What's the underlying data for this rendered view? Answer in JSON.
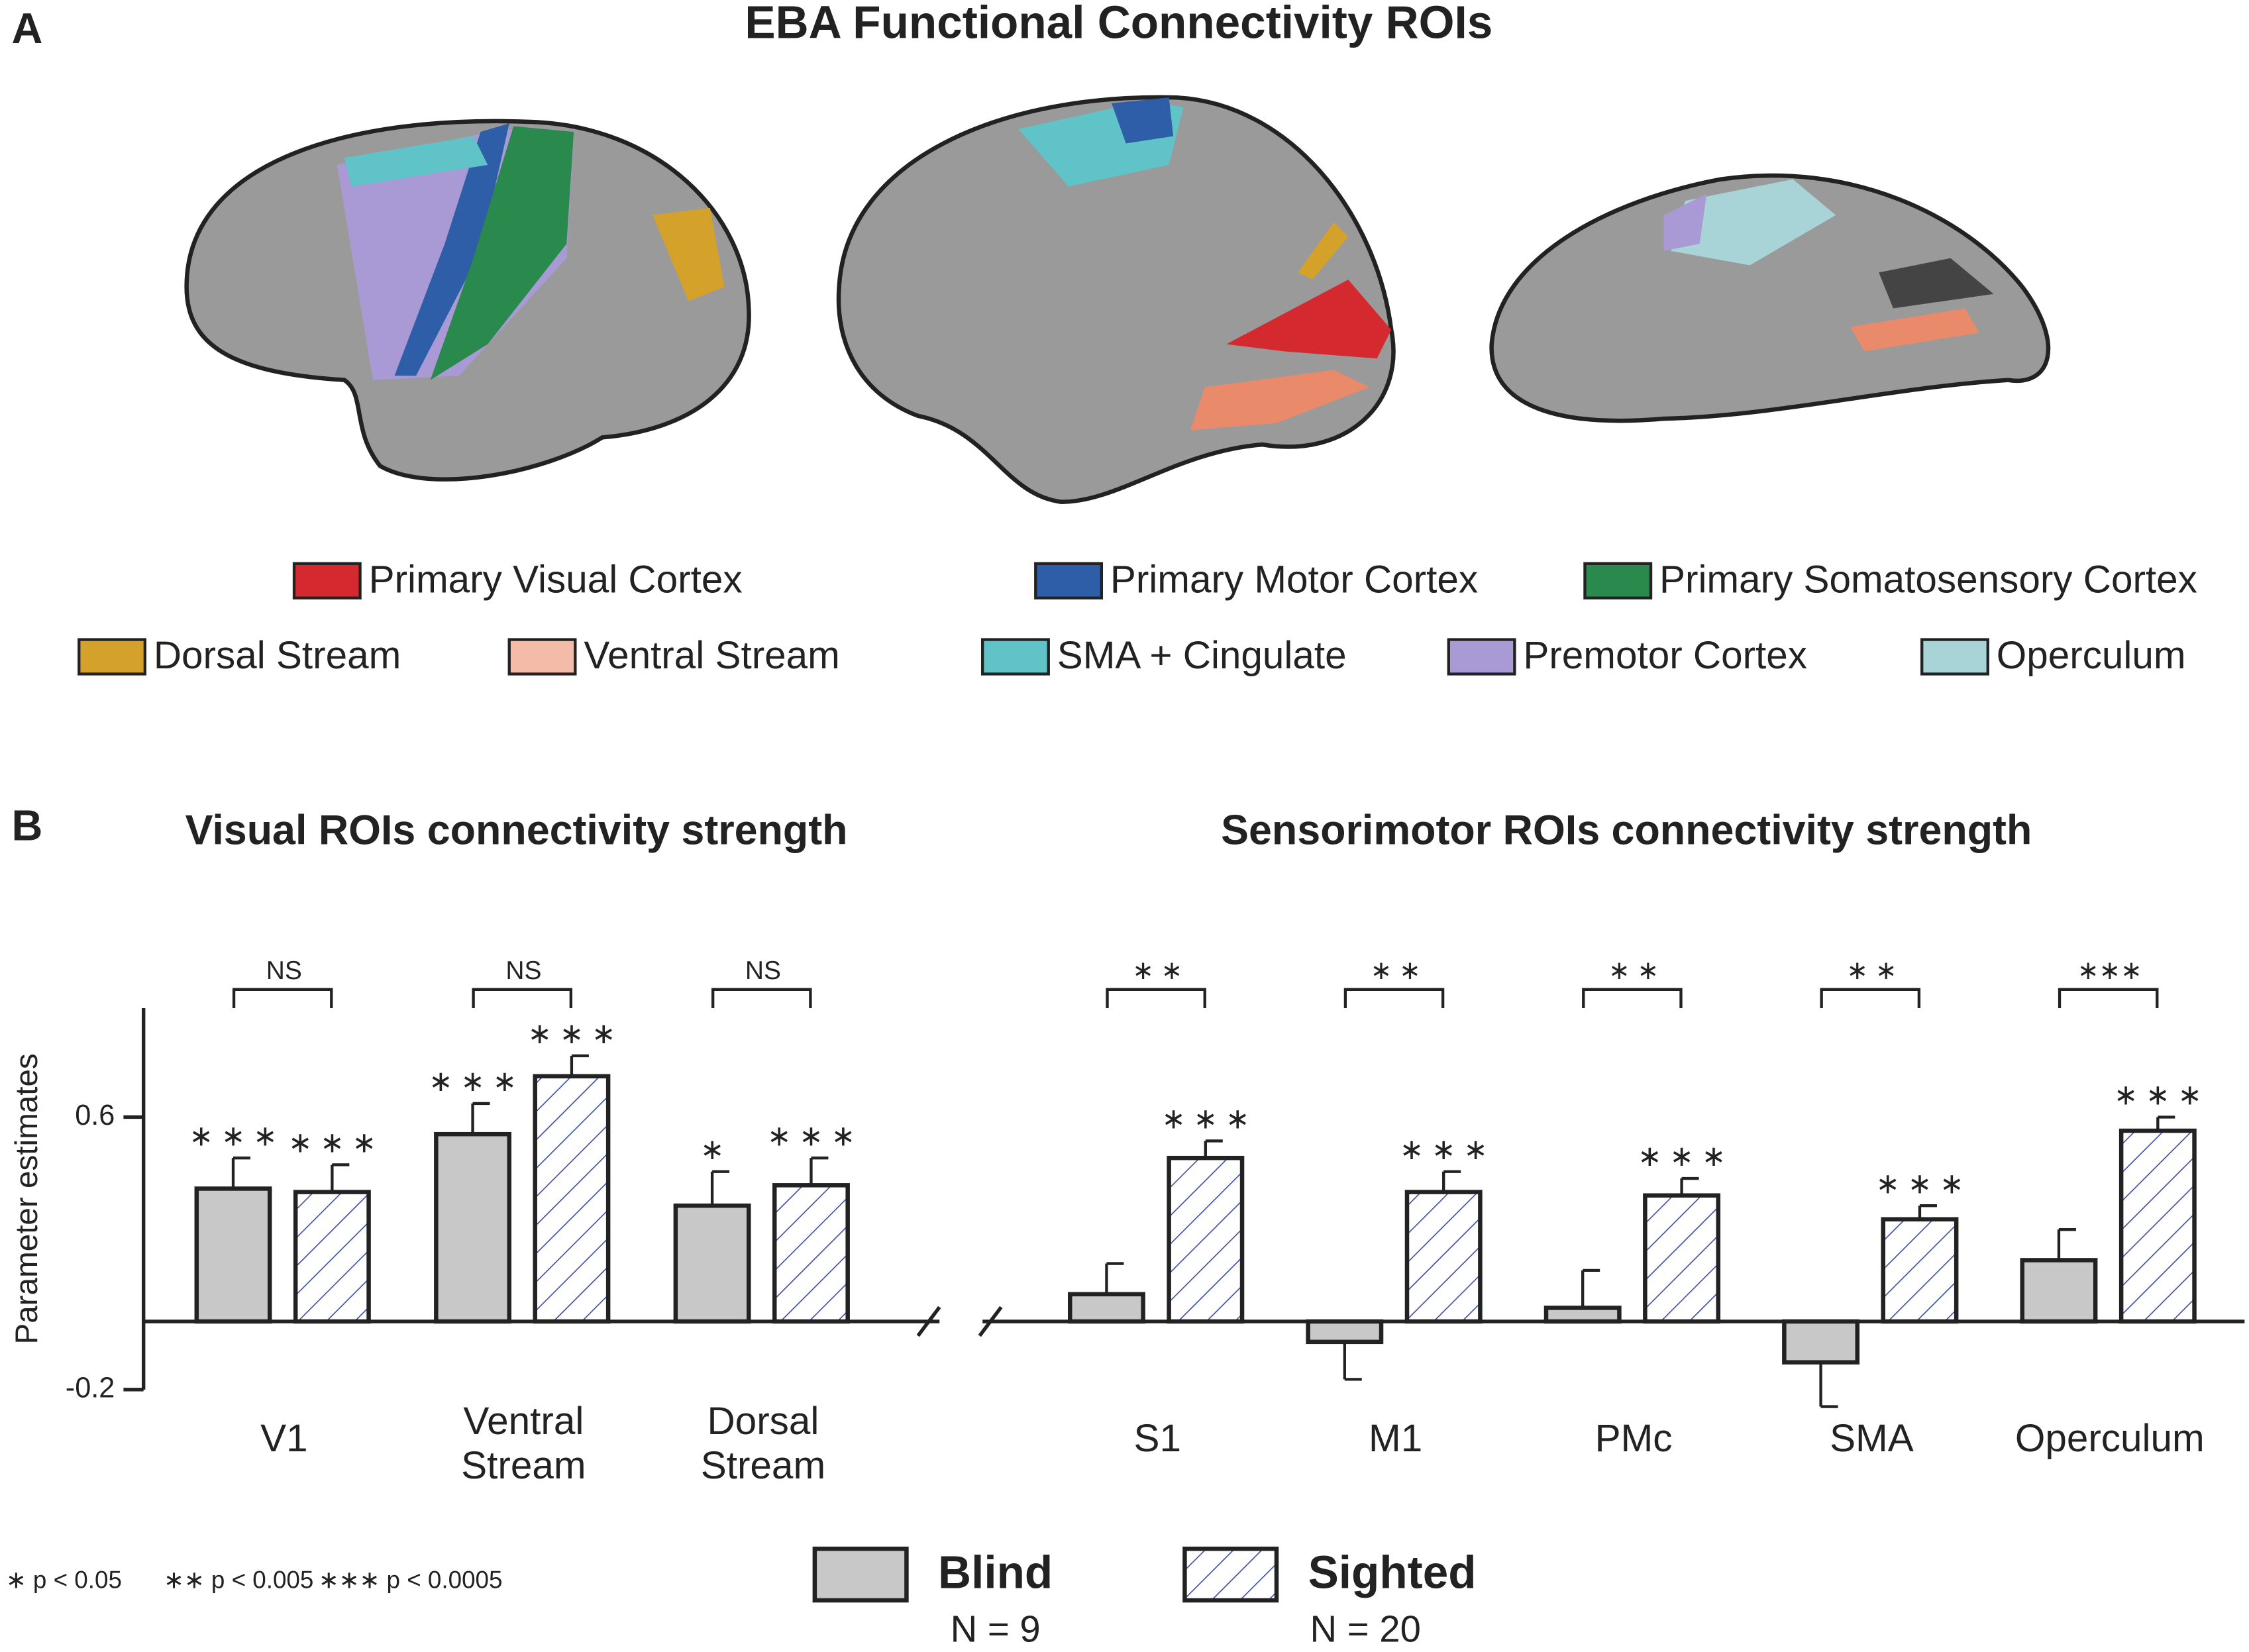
{
  "panel_labels": [
    "A",
    "B"
  ],
  "panel_a": {
    "title": "EBA Functional Connectivity ROIs",
    "legend": [
      {
        "name": "Primary Visual Cortex",
        "color": "#d42a2f"
      },
      {
        "name": "Primary Motor Cortex",
        "color": "#2e5ea8"
      },
      {
        "name": "Primary Somatosensory Cortex",
        "color": "#2a8a4e"
      },
      {
        "name": "Dorsal Stream",
        "color": "#d4a22a"
      },
      {
        "name": "Ventral Stream",
        "color": "#f4bba8"
      },
      {
        "name": "SMA + Cingulate",
        "color": "#5fc3c8"
      },
      {
        "name": "Premotor Cortex",
        "color": "#a99ad6"
      },
      {
        "name": "Operculum",
        "color": "#a8d4d8"
      }
    ]
  },
  "chart_data": {
    "type": "bar",
    "titles": [
      "Visual ROIs connectivity strength",
      "Sensorimotor ROIs connectivity strength"
    ],
    "y_label": "Parameter  estimates",
    "categories": [
      "V1",
      "Ventral Stream",
      "Dorsal Stream",
      "S1",
      "M1",
      "PMc",
      "SMA",
      "Operculum"
    ],
    "ylim": [
      -0.2,
      0.92
    ],
    "yticks": [
      -0.2,
      0.6
    ],
    "series": [
      {
        "name": "Blind",
        "n_label": "N = 9",
        "color": "#c8c8c8",
        "values": [
          0.39,
          0.55,
          0.34,
          0.08,
          -0.06,
          0.04,
          -0.12,
          0.18
        ],
        "errors": [
          0.09,
          0.09,
          0.1,
          0.09,
          0.11,
          0.11,
          0.13,
          0.09
        ],
        "sig_labels": [
          "∗ ∗ ∗",
          "∗ ∗ ∗",
          "∗",
          null,
          null,
          null,
          null,
          null
        ]
      },
      {
        "name": "Sighted",
        "n_label": "N = 20",
        "color": "#3a4fa0",
        "values": [
          0.38,
          0.72,
          0.4,
          0.48,
          0.38,
          0.37,
          0.3,
          0.56
        ],
        "errors": [
          0.08,
          0.06,
          0.08,
          0.05,
          0.06,
          0.05,
          0.04,
          0.04
        ],
        "sig_labels": [
          "∗ ∗ ∗",
          "∗ ∗ ∗",
          "∗ ∗ ∗",
          "∗ ∗ ∗",
          "∗ ∗ ∗",
          "∗ ∗ ∗",
          "∗ ∗ ∗",
          "∗ ∗ ∗"
        ]
      }
    ],
    "comparisons": [
      "NS",
      "NS",
      "NS",
      "∗  ∗",
      "∗  ∗",
      "∗  ∗",
      "∗  ∗",
      "∗∗∗"
    ],
    "footnote": [
      "∗ p < 0.05",
      "∗∗ p < 0.005",
      "∗∗∗ p < 0.0005"
    ]
  }
}
